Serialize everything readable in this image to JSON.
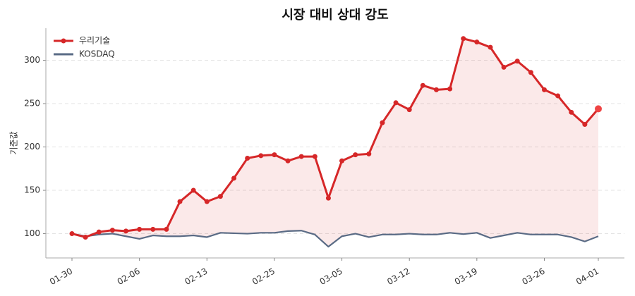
{
  "chart_data": {
    "type": "line",
    "title": "시장 대비 상대 강도",
    "y_label": "기준값",
    "categories": [
      "01-30",
      null,
      null,
      null,
      null,
      "02-06",
      null,
      null,
      null,
      null,
      "02-13",
      null,
      null,
      null,
      null,
      "02-25",
      null,
      null,
      null,
      null,
      "03-05",
      null,
      null,
      null,
      null,
      "03-12",
      null,
      null,
      null,
      null,
      "03-19",
      null,
      null,
      null,
      null,
      "03-26",
      null,
      null,
      null,
      "04-01"
    ],
    "series": [
      {
        "name": "우리기술",
        "color": "#d62728",
        "values": [
          100,
          96,
          102,
          104,
          103,
          105,
          105,
          105,
          137,
          150,
          137,
          143,
          164,
          187,
          190,
          191,
          184,
          189,
          189,
          141,
          184,
          191,
          192,
          228,
          251,
          243,
          271,
          266,
          267,
          325,
          321,
          315,
          292,
          299,
          286,
          266,
          259,
          240,
          226,
          244
        ]
      },
      {
        "name": "KOSDAQ",
        "color": "#5a6b85",
        "values": [
          100,
          97,
          99,
          100,
          97,
          94,
          98,
          97,
          97,
          98,
          96,
          101,
          100.5,
          100,
          101,
          101,
          103,
          103.5,
          99,
          85,
          97,
          100,
          96,
          99,
          99,
          100,
          99,
          99,
          101,
          99.5,
          101,
          95,
          98,
          101,
          99,
          99,
          99,
          96,
          91,
          97
        ]
      }
    ],
    "ylim": [
      72,
      337
    ],
    "yticks": [
      100,
      150,
      200,
      250,
      300
    ],
    "grid": true,
    "legend": "upper left"
  }
}
